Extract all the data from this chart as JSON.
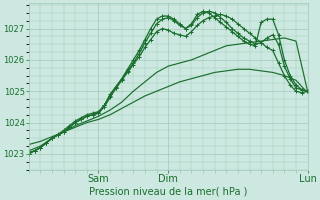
{
  "title": "Pression niveau de la mer( hPa )",
  "ylabel_ticks": [
    1023,
    1024,
    1025,
    1026,
    1027
  ],
  "ylim": [
    1022.5,
    1027.8
  ],
  "xlim": [
    0,
    96
  ],
  "xtick_positions": [
    24,
    48,
    96
  ],
  "xtick_labels": [
    "Sam",
    "Dim",
    "Lun"
  ],
  "bg_color": "#cce8e0",
  "grid_color": "#a0c8b8",
  "line_color": "#1a6e2e",
  "figsize": [
    3.2,
    2.0
  ],
  "dpi": 100,
  "lines": [
    {
      "x": [
        0,
        2,
        4,
        6,
        8,
        10,
        12,
        14,
        16,
        18,
        20,
        22,
        24,
        26,
        28,
        30,
        32,
        34,
        36,
        38,
        40,
        42,
        44,
        46,
        48,
        50,
        52,
        54,
        56,
        58,
        60,
        62,
        64,
        66,
        68,
        70,
        72,
        74,
        76,
        78,
        80,
        82,
        84,
        86,
        88,
        90,
        92,
        94,
        96
      ],
      "y": [
        1023.0,
        1023.1,
        1023.2,
        1023.35,
        1023.5,
        1023.6,
        1023.7,
        1023.85,
        1024.0,
        1024.1,
        1024.2,
        1024.25,
        1024.3,
        1024.5,
        1024.8,
        1025.1,
        1025.35,
        1025.65,
        1025.9,
        1026.2,
        1026.55,
        1026.85,
        1027.15,
        1027.3,
        1027.35,
        1027.25,
        1027.1,
        1027.0,
        1027.15,
        1027.45,
        1027.55,
        1027.5,
        1027.35,
        1027.2,
        1027.05,
        1026.9,
        1026.75,
        1026.6,
        1026.5,
        1026.45,
        1027.2,
        1027.3,
        1027.3,
        1026.8,
        1026.0,
        1025.5,
        1025.2,
        1025.05,
        1025.0
      ],
      "marker": "+",
      "ms": 3,
      "lw": 0.9
    },
    {
      "x": [
        0,
        2,
        4,
        6,
        8,
        10,
        12,
        14,
        16,
        18,
        20,
        22,
        24,
        26,
        28,
        30,
        32,
        34,
        36,
        38,
        40,
        42,
        44,
        46,
        48,
        50,
        52,
        54,
        56,
        58,
        60,
        62,
        64,
        66,
        68,
        70,
        72,
        74,
        76,
        78,
        80,
        82,
        84,
        86,
        88,
        90,
        92,
        94,
        96
      ],
      "y": [
        1023.0,
        1023.1,
        1023.2,
        1023.35,
        1023.5,
        1023.6,
        1023.7,
        1023.85,
        1024.0,
        1024.1,
        1024.2,
        1024.25,
        1024.3,
        1024.55,
        1024.9,
        1025.15,
        1025.4,
        1025.7,
        1026.0,
        1026.3,
        1026.65,
        1027.0,
        1027.3,
        1027.4,
        1027.4,
        1027.3,
        1027.15,
        1027.0,
        1027.1,
        1027.35,
        1027.5,
        1027.55,
        1027.5,
        1027.35,
        1027.2,
        1027.0,
        1026.85,
        1026.7,
        1026.6,
        1026.5,
        1026.55,
        1026.7,
        1026.8,
        1026.5,
        1025.8,
        1025.4,
        1025.1,
        1025.05,
        1025.0
      ],
      "marker": "+",
      "ms": 3,
      "lw": 0.9
    },
    {
      "x": [
        0,
        2,
        4,
        6,
        8,
        10,
        12,
        14,
        16,
        18,
        20,
        22,
        24,
        26,
        28,
        30,
        32,
        34,
        36,
        38,
        40,
        42,
        44,
        46,
        48,
        50,
        52,
        54,
        56,
        58,
        60,
        62,
        64,
        66,
        68,
        70,
        72,
        74,
        76,
        78,
        80,
        82,
        84,
        86,
        88,
        90,
        92,
        94,
        96
      ],
      "y": [
        1023.05,
        1023.1,
        1023.2,
        1023.35,
        1023.5,
        1023.62,
        1023.75,
        1023.9,
        1024.05,
        1024.15,
        1024.25,
        1024.3,
        1024.35,
        1024.55,
        1024.85,
        1025.1,
        1025.35,
        1025.6,
        1025.85,
        1026.1,
        1026.4,
        1026.65,
        1026.9,
        1027.0,
        1026.95,
        1026.85,
        1026.8,
        1026.75,
        1026.9,
        1027.1,
        1027.25,
        1027.35,
        1027.4,
        1027.45,
        1027.4,
        1027.3,
        1027.15,
        1027.0,
        1026.85,
        1026.7,
        1026.55,
        1026.4,
        1026.3,
        1025.9,
        1025.5,
        1025.2,
        1025.0,
        1024.95,
        1025.0
      ],
      "marker": "+",
      "ms": 3,
      "lw": 0.9
    },
    {
      "x": [
        0,
        4,
        8,
        12,
        16,
        20,
        24,
        28,
        32,
        36,
        40,
        44,
        48,
        52,
        56,
        60,
        64,
        68,
        72,
        76,
        80,
        84,
        88,
        92,
        96
      ],
      "y": [
        1023.1,
        1023.25,
        1023.5,
        1023.7,
        1023.9,
        1024.05,
        1024.2,
        1024.4,
        1024.65,
        1025.0,
        1025.3,
        1025.6,
        1025.8,
        1025.9,
        1026.0,
        1026.15,
        1026.3,
        1026.45,
        1026.5,
        1026.55,
        1026.6,
        1026.65,
        1026.7,
        1026.6,
        1025.0
      ],
      "marker": null,
      "ms": 0,
      "lw": 0.85
    },
    {
      "x": [
        0,
        4,
        8,
        12,
        16,
        20,
        24,
        28,
        32,
        36,
        40,
        44,
        48,
        52,
        56,
        60,
        64,
        68,
        72,
        76,
        80,
        84,
        88,
        92,
        96
      ],
      "y": [
        1023.3,
        1023.4,
        1023.55,
        1023.7,
        1023.85,
        1024.0,
        1024.1,
        1024.25,
        1024.45,
        1024.65,
        1024.85,
        1025.0,
        1025.15,
        1025.3,
        1025.4,
        1025.5,
        1025.6,
        1025.65,
        1025.7,
        1025.7,
        1025.65,
        1025.6,
        1025.5,
        1025.35,
        1024.95
      ],
      "marker": null,
      "ms": 0,
      "lw": 0.85
    }
  ]
}
